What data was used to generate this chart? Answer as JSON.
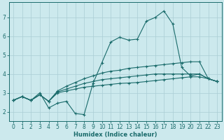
{
  "xlabel": "Humidex (Indice chaleur)",
  "bg_color": "#cce9ed",
  "line_color": "#1a6b6b",
  "grid_color": "#aacdd4",
  "xlim": [
    -0.5,
    23.5
  ],
  "ylim": [
    1.5,
    7.8
  ],
  "xticks": [
    0,
    1,
    2,
    3,
    4,
    5,
    6,
    7,
    8,
    9,
    10,
    11,
    12,
    13,
    14,
    15,
    16,
    17,
    18,
    19,
    20,
    21,
    22,
    23
  ],
  "yticks": [
    2,
    3,
    4,
    5,
    6,
    7
  ],
  "series": [
    [
      2.6,
      2.8,
      2.6,
      2.9,
      2.55,
      3.1,
      3.35,
      3.55,
      3.75,
      3.9,
      4.05,
      4.15,
      4.2,
      4.3,
      4.35,
      4.4,
      4.45,
      4.5,
      4.55,
      4.6,
      4.65,
      4.65,
      3.75,
      3.6
    ],
    [
      2.6,
      2.8,
      2.6,
      2.9,
      2.55,
      3.05,
      3.2,
      3.35,
      3.5,
      3.6,
      3.7,
      3.75,
      3.8,
      3.85,
      3.9,
      3.95,
      4.0,
      4.0,
      4.0,
      4.0,
      4.0,
      4.0,
      3.75,
      3.6
    ],
    [
      2.6,
      2.8,
      2.6,
      2.9,
      2.55,
      3.0,
      3.1,
      3.2,
      3.3,
      3.35,
      3.4,
      3.45,
      3.5,
      3.52,
      3.55,
      3.6,
      3.65,
      3.7,
      3.75,
      3.8,
      3.85,
      3.85,
      3.75,
      3.6
    ],
    [
      2.6,
      2.8,
      2.6,
      3.0,
      2.2,
      2.45,
      2.55,
      1.9,
      1.85,
      3.5,
      4.6,
      5.7,
      5.95,
      5.8,
      5.85,
      6.8,
      7.0,
      7.35,
      6.65,
      4.35,
      3.9,
      4.0,
      3.75,
      3.6
    ]
  ]
}
